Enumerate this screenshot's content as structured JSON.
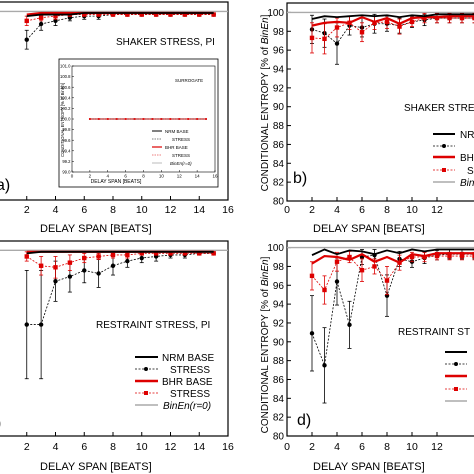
{
  "colors": {
    "nrm": "#000000",
    "bhr": "#dd0000",
    "bin": "#aaaaaa",
    "inset_nrm": "#000000",
    "inset_bhr": "#dd0000"
  },
  "shared": {
    "xlabel": "DELAY SPAN [BEATS]",
    "ylabel_prefix": "CONDITIONAL ENTROPY [% of ",
    "ylabel_italic": "BinEn",
    "ylabel_suffix": "]"
  },
  "panels": [
    {
      "key": "a",
      "panel_label": "a)",
      "title": "SHAKER STRESS, PI",
      "x_ticks": [
        "2",
        "4",
        "6",
        "8",
        "10",
        "12",
        "14",
        "16"
      ],
      "y_ticks": [],
      "xlim": [
        0,
        16
      ],
      "ylim": [
        88,
        100.6
      ],
      "chart_data": {
        "type": "line",
        "x": [
          2,
          3,
          4,
          5,
          6,
          7,
          8,
          9,
          10,
          11,
          12,
          13,
          14,
          15
        ],
        "series": [
          {
            "name": "NRM BASE",
            "style": "nrm_base",
            "values": [
              99.7,
              99.8,
              99.8,
              99.8,
              99.9,
              99.9,
              99.9,
              99.9,
              99.9,
              99.9,
              99.9,
              99.9,
              99.9,
              99.9
            ]
          },
          {
            "name": "STRESS",
            "style": "nrm_stress",
            "values": [
              98.2,
              99.2,
              99.4,
              99.6,
              99.7,
              99.7,
              99.8,
              99.8,
              99.8,
              99.8,
              99.8,
              99.8,
              99.8,
              99.8
            ],
            "err": [
              0.6,
              0.4,
              0.3,
              0.2,
              0.2,
              0.2,
              0.1,
              0.1,
              0.1,
              0.1,
              0.1,
              0.1,
              0.1,
              0.1
            ]
          },
          {
            "name": "BHR BASE",
            "style": "bhr_base",
            "values": [
              99.8,
              99.9,
              99.9,
              99.9,
              99.9,
              99.9,
              99.9,
              99.9,
              99.9,
              99.9,
              99.9,
              99.9,
              99.9,
              99.9
            ]
          },
          {
            "name": "STRESS",
            "style": "bhr_stress",
            "values": [
              99.4,
              99.6,
              99.7,
              99.8,
              99.8,
              99.8,
              99.8,
              99.8,
              99.8,
              99.8,
              99.8,
              99.8,
              99.8,
              99.8
            ],
            "err": [
              0.3,
              0.2,
              0.2,
              0.1,
              0.1,
              0.1,
              0.1,
              0.1,
              0.1,
              0.1,
              0.1,
              0.1,
              0.1,
              0.1
            ]
          },
          {
            "name": "BinEn(r=0)",
            "style": "bin",
            "values": [
              100,
              100
            ],
            "x": [
              0,
              16
            ]
          }
        ]
      },
      "inset": {
        "title": "SURROGATE",
        "y_ticks": [
          "101.0",
          "100.8",
          "100.6",
          "100.4",
          "100.2",
          "100.0",
          "99.8",
          "99.6",
          "99.4",
          "99.2",
          "99.0"
        ],
        "x_ticks": [
          "0",
          "2",
          "4",
          "6",
          "8",
          "10",
          "12",
          "14",
          "16"
        ],
        "ylabel": "CONDITIONAL ENTROPY [% of BinEn]",
        "xlabel": "DELAY SPAN [BEATS]",
        "chart_data": {
          "type": "line",
          "x": [
            2,
            3,
            4,
            5,
            6,
            7,
            8,
            9,
            10,
            11,
            12,
            13,
            14,
            15
          ],
          "ylim": [
            99.0,
            101.0
          ],
          "xlim": [
            0,
            16
          ],
          "series": [
            {
              "name": "NRM BASE",
              "values": [
                100,
                100,
                100,
                100,
                100,
                100,
                100,
                100,
                100,
                100,
                100,
                100,
                100,
                100
              ]
            },
            {
              "name": "STRESS",
              "values": [
                100,
                100,
                100,
                100,
                100,
                100,
                100,
                100,
                100,
                100,
                100,
                100,
                100,
                100
              ]
            }
          ]
        },
        "legend": [
          "NRM BASE",
          "STRESS",
          "BHR BASE",
          "STRESS",
          "BinEn(r=0)"
        ]
      },
      "legend": []
    },
    {
      "key": "b",
      "panel_label": "b)",
      "title": "SHAKER STRE",
      "x_ticks": [
        "0",
        "2",
        "4",
        "6",
        "8",
        "10",
        "12"
      ],
      "y_ticks": [
        "100",
        "98",
        "96",
        "94",
        "92",
        "90",
        "88",
        "86",
        "84",
        "82",
        "80"
      ],
      "xlim": [
        0,
        16
      ],
      "ylim": [
        80,
        101
      ],
      "chart_data": {
        "type": "line",
        "x": [
          2,
          3,
          4,
          5,
          6,
          7,
          8,
          9,
          10,
          11,
          12,
          13,
          14,
          15
        ],
        "series": [
          {
            "name": "NRM BASE",
            "style": "nrm_base",
            "values": [
              99.3,
              99.6,
              99.5,
              99.6,
              99.7,
              99.6,
              99.7,
              99.5,
              99.7,
              99.6,
              99.8,
              99.8,
              99.8,
              99.8
            ]
          },
          {
            "name": "STRESS",
            "style": "nrm_stress",
            "values": [
              98.2,
              97.8,
              96.7,
              98.6,
              98.4,
              98.8,
              98.8,
              98.6,
              99.0,
              99.2,
              99.4,
              99.4,
              99.4,
              99.4
            ],
            "err": [
              1.5,
              1.5,
              2.2,
              1.0,
              1.0,
              1.0,
              0.8,
              0.8,
              0.6,
              0.6,
              0.5,
              0.5,
              0.5,
              0.5
            ]
          },
          {
            "name": "BHR BASE",
            "style": "bhr_base",
            "values": [
              98.6,
              98.9,
              99.0,
              98.9,
              99.5,
              99.0,
              99.4,
              98.8,
              99.4,
              99.5,
              99.5,
              99.6,
              99.6,
              99.6
            ]
          },
          {
            "name": "STRESS",
            "style": "bhr_stress",
            "values": [
              97.3,
              97.2,
              98.4,
              98.9,
              97.9,
              98.9,
              99.0,
              98.5,
              99.0,
              99.4,
              99.4,
              99.4,
              99.4,
              99.4
            ],
            "err": [
              1.6,
              1.6,
              1.0,
              0.7,
              1.0,
              0.7,
              0.7,
              0.8,
              0.5,
              0.5,
              0.5,
              0.5,
              0.5,
              0.5
            ]
          },
          {
            "name": "BinEn(r=0)",
            "style": "bin",
            "values": [
              100,
              100
            ],
            "x": [
              0,
              16
            ]
          }
        ]
      },
      "legend": [
        "NR",
        "BH",
        "S",
        "BinE"
      ]
    },
    {
      "key": "c",
      "panel_label": ")",
      "title": "RESTRAINT STRESS, PI",
      "x_ticks": [
        "2",
        "4",
        "6",
        "8",
        "10",
        "12",
        "14",
        "16"
      ],
      "y_ticks": [],
      "xlim": [
        0,
        16
      ],
      "ylim": [
        88,
        100.6
      ],
      "chart_data": {
        "type": "line",
        "x": [
          2,
          3,
          4,
          5,
          6,
          7,
          8,
          9,
          10,
          11,
          12,
          13,
          14,
          15
        ],
        "series": [
          {
            "name": "NRM BASE",
            "style": "nrm_base",
            "values": [
              99.8,
              99.9,
              99.9,
              99.9,
              99.9,
              99.9,
              99.9,
              99.9,
              99.9,
              99.9,
              99.9,
              99.9,
              99.9,
              99.9
            ]
          },
          {
            "name": "STRESS",
            "style": "nrm_stress",
            "values": [
              95.2,
              95.2,
              98.0,
              98.3,
              98.7,
              98.5,
              99.0,
              99.3,
              99.5,
              99.6,
              99.7,
              99.7,
              99.8,
              99.8
            ],
            "err": [
              3.5,
              3.5,
              1.3,
              1.0,
              0.8,
              0.9,
              0.6,
              0.4,
              0.3,
              0.3,
              0.2,
              0.2,
              0.1,
              0.1
            ]
          },
          {
            "name": "BHR BASE",
            "style": "bhr_base",
            "values": [
              99.9,
              99.9,
              99.9,
              99.9,
              99.9,
              99.9,
              99.9,
              99.9,
              99.9,
              99.9,
              99.9,
              99.9,
              99.9,
              99.9
            ]
          },
          {
            "name": "STRESS",
            "style": "bhr_stress",
            "values": [
              99.6,
              99.0,
              98.9,
              99.2,
              99.5,
              99.6,
              99.7,
              99.7,
              99.8,
              99.8,
              99.8,
              99.8,
              99.8,
              99.8
            ],
            "err": [
              0.3,
              0.6,
              0.7,
              0.5,
              0.3,
              0.2,
              0.2,
              0.2,
              0.1,
              0.1,
              0.1,
              0.1,
              0.1,
              0.1
            ]
          },
          {
            "name": "BinEn(r=0)",
            "style": "bin",
            "values": [
              100,
              100
            ],
            "x": [
              0,
              16
            ]
          }
        ]
      },
      "legend": [
        "NRM BASE",
        "STRESS",
        "BHR BASE",
        "STRESS",
        "BinEn(r=0)"
      ]
    },
    {
      "key": "d",
      "panel_label": "d)",
      "title": "RESTRAINT ST",
      "x_ticks": [
        "0",
        "2",
        "4",
        "6",
        "8",
        "10",
        "12"
      ],
      "y_ticks": [
        "100",
        "98",
        "96",
        "94",
        "92",
        "90",
        "88",
        "86",
        "84",
        "82",
        "80"
      ],
      "xlim": [
        0,
        16
      ],
      "ylim": [
        80,
        100.7
      ],
      "chart_data": {
        "type": "line",
        "x": [
          2,
          3,
          4,
          5,
          6,
          7,
          8,
          9,
          10,
          11,
          12,
          13,
          14,
          15
        ],
        "series": [
          {
            "name": "NRM BASE",
            "style": "nrm_base",
            "values": [
              99.2,
              99.8,
              99.3,
              99.7,
              99.6,
              99.3,
              99.7,
              99.4,
              99.8,
              99.6,
              99.8,
              99.8,
              99.8,
              99.8
            ]
          },
          {
            "name": "STRESS",
            "style": "nrm_stress",
            "values": [
              90.9,
              87.5,
              96.4,
              91.8,
              99.0,
              99.2,
              94.9,
              98.8,
              98.5,
              98.9,
              99.2,
              99.3,
              99.3,
              99.3
            ],
            "err": [
              4.0,
              4.0,
              2.5,
              2.5,
              0.8,
              0.6,
              2.2,
              0.8,
              0.6,
              0.6,
              0.5,
              0.5,
              0.5,
              0.5
            ]
          },
          {
            "name": "BHR BASE",
            "style": "bhr_base",
            "values": [
              98.3,
              99.1,
              99.0,
              98.7,
              99.3,
              98.5,
              99.0,
              98.4,
              99.3,
              99.1,
              99.4,
              99.4,
              99.4,
              99.4
            ]
          },
          {
            "name": "STRESS",
            "style": "bhr_stress",
            "values": [
              97.0,
              95.5,
              98.5,
              99.0,
              97.6,
              98.0,
              96.5,
              98.4,
              99.0,
              99.0,
              99.1,
              99.1,
              99.1,
              99.1
            ],
            "err": [
              1.5,
              1.5,
              1.0,
              0.6,
              1.2,
              0.8,
              1.5,
              0.8,
              0.5,
              0.5,
              0.4,
              0.4,
              0.4,
              0.4
            ]
          },
          {
            "name": "BinEn(r=0)",
            "style": "bin",
            "values": [
              100,
              100
            ],
            "x": [
              0,
              16
            ]
          }
        ]
      },
      "legend": []
    }
  ]
}
